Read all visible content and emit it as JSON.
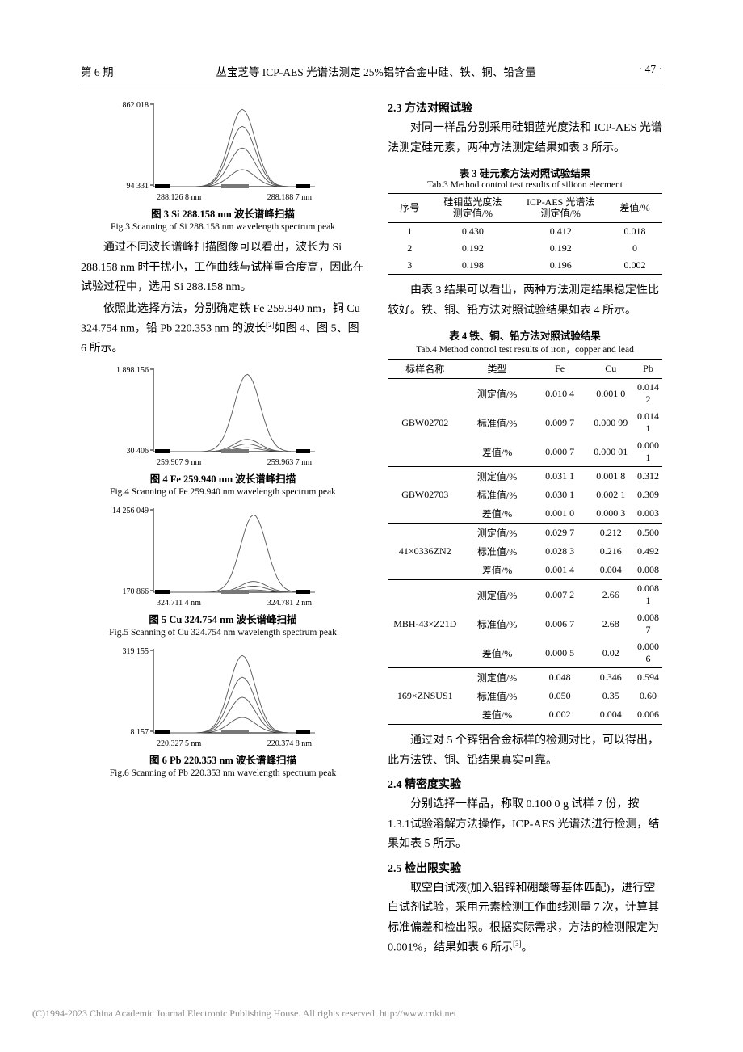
{
  "header": {
    "issue": "第 6 期",
    "title": "丛宝芝等   ICP-AES 光谱法测定 25%铝锌合金中硅、铁、铜、铅含量",
    "page": "· 47 ·"
  },
  "figures": {
    "fig3": {
      "type": "line",
      "ylabel_top": "862 018",
      "ylabel_bottom": "94 331",
      "xlabel_left": "288.126 8 nm",
      "xlabel_right": "288.188 7 nm",
      "caption_cn": "图 3   Si 288.158 nm 波长谱峰扫描",
      "caption_en": "Fig.3   Scanning of Si 288.158 nm wavelength spectrum peak",
      "line_color": "#555555",
      "bg": "#ffffff",
      "series": [
        {
          "peak_h": 1.0,
          "peak_x": 0.55
        },
        {
          "peak_h": 0.78,
          "peak_x": 0.55
        },
        {
          "peak_h": 0.5,
          "peak_x": 0.55
        },
        {
          "peak_h": 0.22,
          "peak_x": 0.55
        }
      ]
    },
    "fig4": {
      "type": "line",
      "ylabel_top": "1 898 156",
      "ylabel_bottom": "30 406",
      "xlabel_left": "259.907 9 nm",
      "xlabel_right": "259.963 7 nm",
      "caption_cn": "图 4   Fe 259.940 nm 波长谱峰扫描",
      "caption_en": "Fig.4   Scanning of Fe 259.940 nm wavelength spectrum peak",
      "line_color": "#555555",
      "series": [
        {
          "peak_h": 1.0,
          "peak_x": 0.58
        },
        {
          "peak_h": 0.16,
          "peak_x": 0.58
        },
        {
          "peak_h": 0.1,
          "peak_x": 0.58
        },
        {
          "peak_h": 0.05,
          "peak_x": 0.58
        }
      ]
    },
    "fig5": {
      "type": "line",
      "ylabel_top": "14 256 049",
      "ylabel_bottom": "170 866",
      "xlabel_left": "324.711 4 nm",
      "xlabel_right": "324.781 2 nm",
      "caption_cn": "图 5   Cu 324.754 nm 波长谱峰扫描",
      "caption_en": "Fig.5   Scanning of Cu 324.754 nm wavelength spectrum peak",
      "line_color": "#555555",
      "series": [
        {
          "peak_h": 1.0,
          "peak_x": 0.62
        },
        {
          "peak_h": 0.14,
          "peak_x": 0.62
        },
        {
          "peak_h": 0.08,
          "peak_x": 0.62
        },
        {
          "peak_h": 0.03,
          "peak_x": 0.62
        }
      ]
    },
    "fig6": {
      "type": "line",
      "ylabel_top": "319 155",
      "ylabel_bottom": "8 157",
      "xlabel_left": "220.327 5 nm",
      "xlabel_right": "220.374 8 nm",
      "caption_cn": "图 6   Pb 220.353 nm 波长谱峰扫描",
      "caption_en": "Fig.6   Scanning of Pb 220.353 nm wavelength spectrum peak",
      "line_color": "#555555",
      "series": [
        {
          "peak_h": 1.0,
          "peak_x": 0.55
        },
        {
          "peak_h": 0.72,
          "peak_x": 0.55
        },
        {
          "peak_h": 0.46,
          "peak_x": 0.55
        },
        {
          "peak_h": 0.2,
          "peak_x": 0.55
        }
      ]
    }
  },
  "text": {
    "p1": "通过不同波长谱峰扫描图像可以看出，波长为 Si 288.158 nm 时干扰小，工作曲线与试样重合度高，因此在试验过程中，选用 Si 288.158 nm。",
    "p2a": "依照此选择方法，分别确定铁 Fe 259.940 nm，铜 Cu 324.754 nm，铅 Pb 220.353 nm 的波长",
    "p2b": "如图 4、图 5、图 6 所示。",
    "p3": "对同一样品分别采用硅钼蓝光度法和 ICP-AES 光谱法测定硅元素，两种方法测定结果如表 3 所示。",
    "p4": "由表 3 结果可以看出，两种方法测定结果稳定性比较好。铁、铜、铅方法对照试验结果如表 4 所示。",
    "p5": "通过对 5 个锌铝合金标样的检测对比，可以得出，此方法铁、铜、铅结果真实可靠。",
    "p6": "分别选择一样品，称取 0.100 0 g 试样 7 份，按 1.3.1试验溶解方法操作，ICP-AES 光谱法进行检测，结果如表 5 所示。",
    "p7a": "取空白试液(加入铝锌和硼酸等基体匹配)，进行空白试剂试验，采用元素检测工作曲线测量 7 次，计算其标准偏差和检出限。根据实际需求，方法的检测限定为 0.001%，结果如表 6 所示",
    "ref2": "[2]",
    "ref3": "[3]",
    "period": "。"
  },
  "sections": {
    "s23": "2.3   方法对照试验",
    "s24": "2.4   精密度实验",
    "s25": "2.5   检出限实验"
  },
  "table3": {
    "caption_cn": "表 3   硅元素方法对照试验结果",
    "caption_en": "Tab.3   Method control test results of silicon elecment",
    "head": {
      "c1": "序号",
      "c2a": "硅钼蓝光度法",
      "c2b": "测定值/%",
      "c3a": "ICP-AES 光谱法",
      "c3b": "测定值/%",
      "c4": "差值/%"
    },
    "rows": [
      [
        "1",
        "0.430",
        "0.412",
        "0.018"
      ],
      [
        "2",
        "0.192",
        "0.192",
        "0"
      ],
      [
        "3",
        "0.198",
        "0.196",
        "0.002"
      ]
    ]
  },
  "table4": {
    "caption_cn": "表 4   铁、铜、铅方法对照试验结果",
    "caption_en": "Tab.4   Method control test results of iron，copper and lead",
    "head": [
      "标样名称",
      "类型",
      "Fe",
      "Cu",
      "Pb"
    ],
    "groups": [
      {
        "name": "GBW02702",
        "rows": [
          [
            "测定值/%",
            "0.010 4",
            "0.001 0",
            "0.014 2"
          ],
          [
            "标准值/%",
            "0.009 7",
            "0.000 99",
            "0.014 1"
          ],
          [
            "差值/%",
            "0.000 7",
            "0.000 01",
            "0.000 1"
          ]
        ]
      },
      {
        "name": "GBW02703",
        "rows": [
          [
            "测定值/%",
            "0.031 1",
            "0.001 8",
            "0.312"
          ],
          [
            "标准值/%",
            "0.030 1",
            "0.002 1",
            "0.309"
          ],
          [
            "差值/%",
            "0.001 0",
            "0.000 3",
            "0.003"
          ]
        ]
      },
      {
        "name": "41×0336ZN2",
        "rows": [
          [
            "测定值/%",
            "0.029 7",
            "0.212",
            "0.500"
          ],
          [
            "标准值/%",
            "0.028 3",
            "0.216",
            "0.492"
          ],
          [
            "差值/%",
            "0.001 4",
            "0.004",
            "0.008"
          ]
        ]
      },
      {
        "name": "MBH-43×Z21D",
        "rows": [
          [
            "测定值/%",
            "0.007 2",
            "2.66",
            "0.008 1"
          ],
          [
            "标准值/%",
            "0.006 7",
            "2.68",
            "0.008 7"
          ],
          [
            "差值/%",
            "0.000 5",
            "0.02",
            "0.000 6"
          ]
        ]
      },
      {
        "name": "169×ZNSUS1",
        "rows": [
          [
            "测定值/%",
            "0.048",
            "0.346",
            "0.594"
          ],
          [
            "标准值/%",
            "0.050",
            "0.35",
            "0.60"
          ],
          [
            "差值/%",
            "0.002",
            "0.004",
            "0.006"
          ]
        ]
      }
    ]
  },
  "footer": {
    "text": "(C)1994-2023 China Academic Journal Electronic Publishing House. All rights reserved.    http://www.cnki.net"
  }
}
